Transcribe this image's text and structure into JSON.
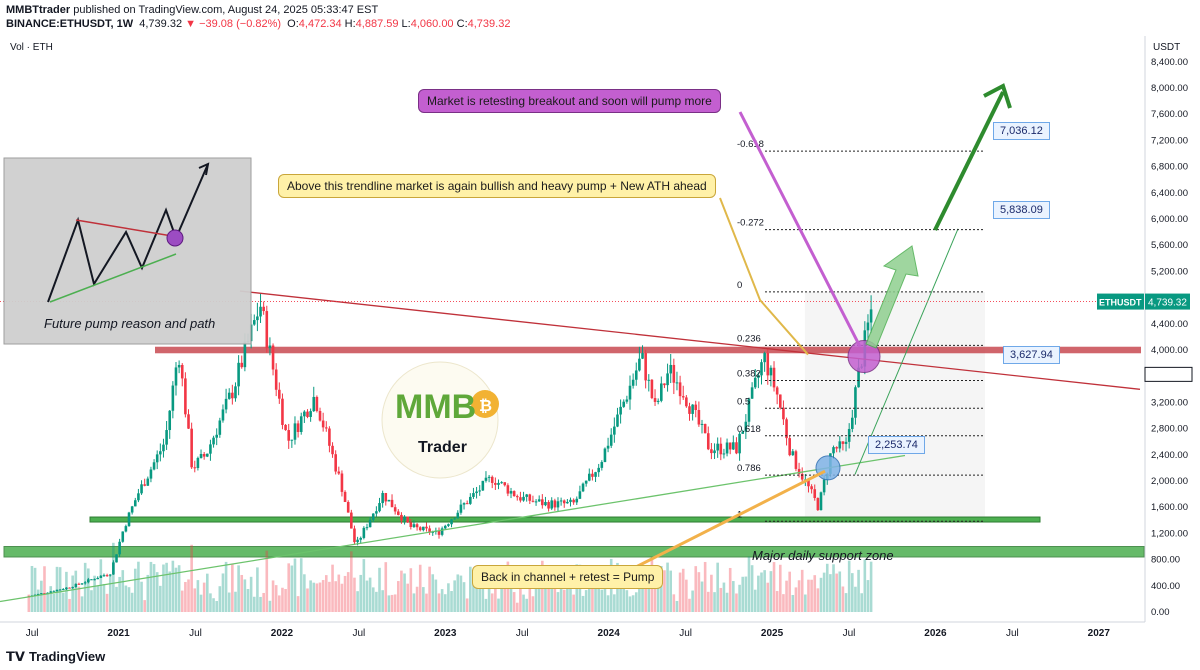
{
  "header": {
    "publisher": "MMBTtrader",
    "published_text": "published on TradingView.com, August 24, 2025 05:33:47 EST",
    "symbol": "BINANCE:ETHUSDT, 1W",
    "last": "4,739.32",
    "change": "−39.08 (−0.82%)",
    "ohlc": {
      "o": "4,472.34",
      "h": "4,887.59",
      "l": "4,060.00",
      "c": "4,739.32"
    }
  },
  "vol_label": "Vol · ETH",
  "currency": "USDT",
  "ticker_label": "ETHUSDT",
  "ticker_price": "4,739.32",
  "footer_brand": "TradingView",
  "colors": {
    "up": "#089981",
    "down": "#f23645",
    "support": "#3aa35a",
    "resistance": "#c0313a",
    "arrow": "#2e8b2e",
    "fib": "#222222"
  },
  "annotations": {
    "purple": "Market is retesting breakout and soon will pump more",
    "yellow_top": "Above this trendline market is again bullish and heavy pump + New ATH ahead",
    "yellow_bottom": "Back in channel + retest = Pump",
    "support_zone": "Major daily support zone",
    "future_path": "Future pump reason and path"
  },
  "logo": {
    "text": "MMB",
    "sub": "Trader"
  },
  "chart_data": {
    "type": "candlestick",
    "yaxis": {
      "ticks": [
        8400,
        8000,
        7600,
        7200,
        6800,
        6400,
        6000,
        5600,
        5200,
        4800,
        4400,
        4000,
        3600,
        3200,
        2800,
        2400,
        2000,
        1600,
        1200,
        800,
        400,
        0
      ]
    },
    "y_tick_labels": [
      "8,400.00",
      "8,000.00",
      "7,600.00",
      "7,200.00",
      "6,800.00",
      "6,400.00",
      "6,000.00",
      "5,600.00",
      "5,200.00",
      "4,800.00",
      "4,400.00",
      "4,000.00",
      "3,600.00",
      "3,200.00",
      "2,800.00",
      "2,400.00",
      "2,000.00",
      "1,600.00",
      "1,200.00",
      "800.00",
      "400.00",
      "0.00"
    ],
    "x_tick_labels": [
      "Jul",
      "2021",
      "Jul",
      "2022",
      "Jul",
      "2023",
      "Jul",
      "2024",
      "Jul",
      "2025",
      "Jul",
      "2026",
      "Jul",
      "2027"
    ],
    "price_anchors": [
      [
        "2020-06",
        240
      ],
      [
        "2020-09",
        380
      ],
      [
        "2020-12",
        600
      ],
      [
        "2021-01",
        1300
      ],
      [
        "2021-02",
        1800
      ],
      [
        "2021-04",
        2600
      ],
      [
        "2021-05",
        4000
      ],
      [
        "2021-06",
        2200
      ],
      [
        "2021-07",
        2400
      ],
      [
        "2021-09",
        3400
      ],
      [
        "2021-11",
        4700
      ],
      [
        "2022-01",
        2600
      ],
      [
        "2022-03",
        3300
      ],
      [
        "2022-05",
        1900
      ],
      [
        "2022-06",
        1000
      ],
      [
        "2022-08",
        1800
      ],
      [
        "2022-10",
        1300
      ],
      [
        "2022-12",
        1200
      ],
      [
        "2023-02",
        1650
      ],
      [
        "2023-04",
        2050
      ],
      [
        "2023-06",
        1750
      ],
      [
        "2023-08",
        1650
      ],
      [
        "2023-10",
        1650
      ],
      [
        "2023-12",
        2300
      ],
      [
        "2024-03",
        3900
      ],
      [
        "2024-04",
        3100
      ],
      [
        "2024-05",
        3700
      ],
      [
        "2024-06",
        3400
      ],
      [
        "2024-08",
        2500
      ],
      [
        "2024-10",
        2500
      ],
      [
        "2024-12",
        3900
      ],
      [
        "2025-01",
        3300
      ],
      [
        "2025-02",
        2400
      ],
      [
        "2025-04",
        1600
      ],
      [
        "2025-05",
        2500
      ],
      [
        "2025-06",
        2500
      ],
      [
        "2025-07",
        3700
      ],
      [
        "2025-08",
        4739
      ]
    ],
    "fib_levels": [
      {
        "label": "-0.618",
        "price": 7036.12
      },
      {
        "label": "-0.272",
        "price": 5838.09
      },
      {
        "label": "0",
        "price": 4887.59
      },
      {
        "label": "0.236",
        "price": 4070
      },
      {
        "label": "0.382",
        "price": 3535
      },
      {
        "label": "0.5",
        "price": 3110
      },
      {
        "label": "0.618",
        "price": 2690
      },
      {
        "label": "0.786",
        "price": 2090
      },
      {
        "label": "1",
        "price": 1385
      }
    ],
    "price_boxes": [
      "7,036.12",
      "5,838.09",
      "3,627.94",
      "2,253.74"
    ],
    "resistance_zone": [
      3950,
      4050
    ],
    "support_band": [
      1420,
      1450
    ],
    "major_support_zone": [
      840,
      1000
    ]
  }
}
